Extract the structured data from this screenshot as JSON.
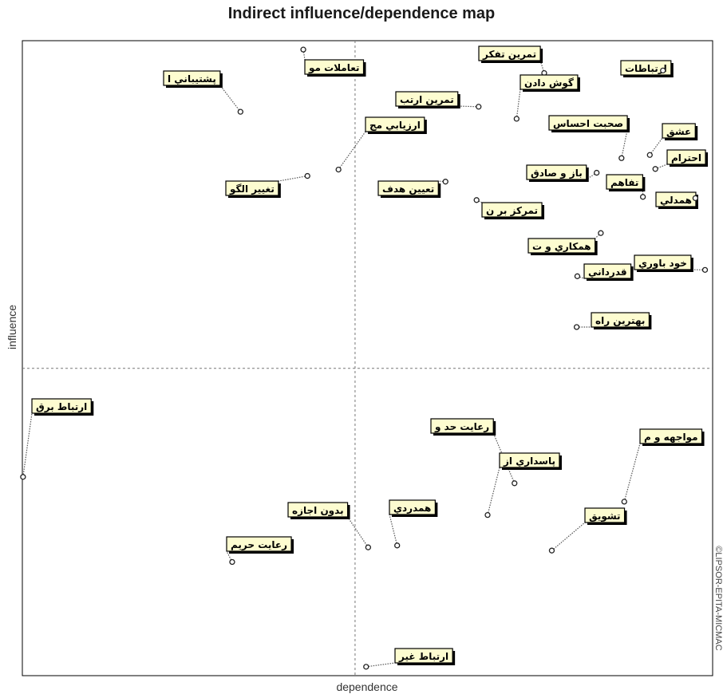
{
  "chart_data": {
    "type": "scatter",
    "title": "Indirect influence/dependence map",
    "xlabel": "dependence",
    "ylabel": "influence",
    "credit": "©LIPSOR-EPITA-MICMAC",
    "xlim": [
      0,
      100
    ],
    "ylim": [
      0,
      100
    ],
    "quadrant_lines": {
      "x": 48.2,
      "y": 48.4
    },
    "grid": false,
    "points": [
      {
        "label": "ارتباطات",
        "x": 92.8,
        "y": 95.3
      },
      {
        "label": "تمرين تفكر",
        "x": 75.6,
        "y": 94.9
      },
      {
        "label": "گوش دادن",
        "x": 71.6,
        "y": 87.7
      },
      {
        "label": "تمرين ارتب",
        "x": 66.1,
        "y": 89.6
      },
      {
        "label": "تعاملات مو",
        "x": 40.7,
        "y": 98.6
      },
      {
        "label": "پشتيباني ا",
        "x": 31.6,
        "y": 88.8
      },
      {
        "label": "ارزيابي مج",
        "x": 45.8,
        "y": 79.7
      },
      {
        "label": "صحبت احساس",
        "x": 86.8,
        "y": 81.5
      },
      {
        "label": "عشق",
        "x": 90.9,
        "y": 82.0
      },
      {
        "label": "احترام",
        "x": 91.7,
        "y": 79.8
      },
      {
        "label": "باز و صادق",
        "x": 83.2,
        "y": 79.2
      },
      {
        "label": "تفاهم",
        "x": 89.9,
        "y": 75.4
      },
      {
        "label": "همدلي",
        "x": 97.5,
        "y": 75.2
      },
      {
        "label": "تغيير الگو",
        "x": 41.3,
        "y": 78.7
      },
      {
        "label": "تعيين هدف",
        "x": 61.3,
        "y": 77.8
      },
      {
        "label": "تمركز بر ن",
        "x": 65.8,
        "y": 74.9
      },
      {
        "label": "همكاري و ت",
        "x": 83.8,
        "y": 69.7
      },
      {
        "label": "خود باوري",
        "x": 98.9,
        "y": 63.9
      },
      {
        "label": "قدرداني",
        "x": 80.4,
        "y": 62.9
      },
      {
        "label": "بهترين راه",
        "x": 80.3,
        "y": 54.9
      },
      {
        "label": "ارتباط برق",
        "x": 0.1,
        "y": 31.3
      },
      {
        "label": "رعايت حد و",
        "x": 71.3,
        "y": 30.3
      },
      {
        "label": "مواجهه و م",
        "x": 87.2,
        "y": 27.4
      },
      {
        "label": "پاسداري از",
        "x": 67.4,
        "y": 25.3
      },
      {
        "label": "همدردي",
        "x": 54.3,
        "y": 20.5
      },
      {
        "label": "بدون اجازه",
        "x": 50.1,
        "y": 20.2
      },
      {
        "label": "تشويق",
        "x": 76.7,
        "y": 19.7
      },
      {
        "label": "رعايت حريم",
        "x": 30.4,
        "y": 17.9
      },
      {
        "label": "ارتباط غير",
        "x": 49.8,
        "y": 1.4
      }
    ]
  }
}
